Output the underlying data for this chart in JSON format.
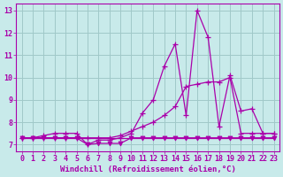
{
  "background_color": "#c8eaea",
  "grid_color": "#a0c8c8",
  "line_color": "#aa00aa",
  "xlabel": "Windchill (Refroidissement éolien,°C)",
  "xlim": [
    -0.5,
    23.5
  ],
  "ylim": [
    6.7,
    13.3
  ],
  "yticks": [
    7,
    8,
    9,
    10,
    11,
    12,
    13
  ],
  "xticks": [
    0,
    1,
    2,
    3,
    4,
    5,
    6,
    7,
    8,
    9,
    10,
    11,
    12,
    13,
    14,
    15,
    16,
    17,
    18,
    19,
    20,
    21,
    22,
    23
  ],
  "series1_x": [
    0,
    1,
    2,
    3,
    4,
    5,
    6,
    7,
    8,
    9,
    10,
    11,
    12,
    13,
    14,
    15,
    16,
    17,
    18,
    19,
    20,
    21,
    22,
    23
  ],
  "series1_y": [
    7.3,
    7.3,
    7.4,
    7.5,
    7.5,
    7.5,
    7.0,
    7.2,
    7.2,
    7.3,
    7.5,
    8.4,
    9.0,
    10.5,
    11.5,
    8.3,
    13.0,
    11.8,
    7.8,
    10.1,
    8.5,
    8.6,
    7.5,
    7.5
  ],
  "series2_x": [
    0,
    1,
    2,
    3,
    4,
    5,
    6,
    7,
    8,
    9,
    10,
    11,
    12,
    13,
    14,
    15,
    16,
    17,
    18,
    19,
    20,
    21,
    22,
    23
  ],
  "series2_y": [
    7.3,
    7.3,
    7.3,
    7.3,
    7.3,
    7.3,
    7.3,
    7.3,
    7.3,
    7.4,
    7.6,
    7.8,
    8.0,
    8.3,
    8.7,
    9.6,
    9.7,
    9.8,
    9.8,
    10.0,
    7.5,
    7.5,
    7.5,
    7.5
  ],
  "series3_x": [
    0,
    1,
    2,
    3,
    4,
    5,
    6,
    7,
    8,
    9,
    10,
    11,
    12,
    13,
    14,
    15,
    16,
    17,
    18,
    19,
    20,
    21,
    22,
    23
  ],
  "series3_y": [
    7.3,
    7.3,
    7.3,
    7.3,
    7.3,
    7.3,
    7.3,
    7.3,
    7.3,
    7.3,
    7.3,
    7.3,
    7.3,
    7.3,
    7.3,
    7.3,
    7.3,
    7.3,
    7.3,
    7.3,
    7.3,
    7.3,
    7.3,
    7.3
  ],
  "series4_x": [
    0,
    1,
    2,
    3,
    4,
    5,
    6,
    7,
    8,
    9,
    10,
    11,
    12,
    13,
    14,
    15,
    16,
    17,
    18,
    19,
    20,
    21,
    22,
    23
  ],
  "series4_y": [
    7.3,
    7.3,
    7.3,
    7.3,
    7.3,
    7.3,
    7.0,
    7.05,
    7.05,
    7.05,
    7.3,
    7.3,
    7.3,
    7.3,
    7.3,
    7.3,
    7.3,
    7.3,
    7.3,
    7.3,
    7.3,
    7.3,
    7.3,
    7.3
  ],
  "xlabel_fontsize": 6.5,
  "tick_fontsize": 6
}
